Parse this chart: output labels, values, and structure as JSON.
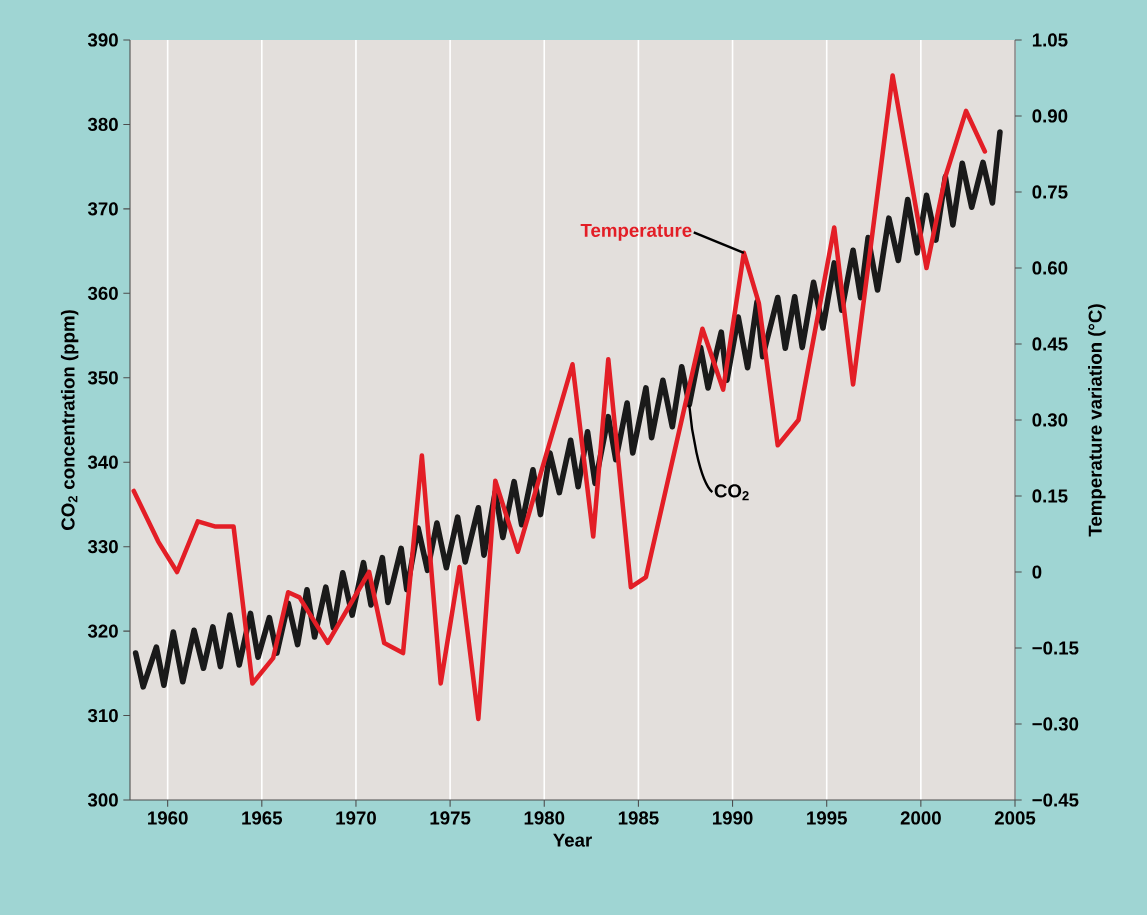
{
  "chart_data": {
    "type": "line",
    "xlabel": "Year",
    "ylabel": "CO$_{2}$ concentration (ppm)",
    "y2label": "Temperature variation (°C)",
    "xlim": [
      1958,
      2005
    ],
    "xticks": [
      1960,
      1965,
      1970,
      1975,
      1980,
      1985,
      1990,
      1995,
      2000,
      2005
    ],
    "ylim": [
      300,
      390
    ],
    "yticks": [
      300,
      310,
      320,
      330,
      340,
      350,
      360,
      370,
      380,
      390
    ],
    "y2lim": [
      -0.45,
      1.05
    ],
    "y2ticks": [
      {
        "value": -0.45,
        "label": "−0.45"
      },
      {
        "value": -0.3,
        "label": "−0.30"
      },
      {
        "value": -0.15,
        "label": "−0.15"
      },
      0,
      0.15,
      {
        "value": 0.3,
        "label": "0.30"
      },
      0.45,
      {
        "value": 0.6,
        "label": "0.60"
      },
      0.75,
      {
        "value": 0.9,
        "label": "0.90"
      },
      1.05
    ],
    "grid": "x",
    "series": [
      {
        "name": "Temperature",
        "color": "#e31e26",
        "axis": "y2",
        "x": [
          1958.2,
          1959.5,
          1960.5,
          1961.6,
          1962.5,
          1963.5,
          1964.5,
          1965.6,
          1966.4,
          1967.0,
          1968.5,
          1970.7,
          1971.5,
          1972.5,
          1973.5,
          1974.5,
          1975.5,
          1976.5,
          1977.4,
          1978.6,
          1981.5,
          1982.6,
          1983.4,
          1984.6,
          1985.4,
          1988.4,
          1989.5,
          1990.6,
          1991.4,
          1992.4,
          1993.5,
          1995.4,
          1996.4,
          1998.5,
          2000.3,
          2001.3,
          2002.4,
          2003.4
        ],
        "values": [
          0.16,
          0.06,
          0.0,
          0.1,
          0.09,
          0.09,
          -0.22,
          -0.17,
          -0.04,
          -0.05,
          -0.14,
          0.0,
          -0.14,
          -0.16,
          0.23,
          -0.22,
          0.01,
          -0.29,
          0.18,
          0.04,
          0.41,
          0.07,
          0.42,
          -0.03,
          -0.01,
          0.48,
          0.36,
          0.63,
          0.53,
          0.25,
          0.3,
          0.68,
          0.37,
          0.98,
          0.6,
          0.78,
          0.91,
          0.83
        ]
      },
      {
        "name": "CO$_{2}$",
        "color": "#1a1a1a",
        "x": [
          1958.3,
          1958.7,
          1959.4,
          1959.8,
          1960.3,
          1960.8,
          1961.4,
          1961.9,
          1962.4,
          1962.8,
          1963.3,
          1963.8,
          1964.4,
          1964.8,
          1965.4,
          1965.8,
          1966.4,
          1966.9,
          1967.4,
          1967.8,
          1968.4,
          1968.8,
          1969.3,
          1969.8,
          1970.4,
          1970.8,
          1971.4,
          1971.7,
          1972.4,
          1972.7,
          1973.3,
          1973.8,
          1974.3,
          1974.8,
          1975.4,
          1975.8,
          1976.5,
          1976.8,
          1977.4,
          1977.8,
          1978.4,
          1978.8,
          1979.4,
          1979.8,
          1980.3,
          1980.8,
          1981.4,
          1981.8,
          1982.3,
          1982.7,
          1983.4,
          1983.8,
          1984.4,
          1984.7,
          1985.4,
          1985.7,
          1986.3,
          1986.8,
          1987.3,
          1987.7,
          1988.3,
          1988.7,
          1989.4,
          1989.7,
          1990.3,
          1990.8,
          1991.3,
          1991.6,
          1992.4,
          1992.8,
          1993.3,
          1993.7,
          1994.3,
          1994.8,
          1995.4,
          1995.8,
          1996.4,
          1996.8,
          1997.2,
          1997.7,
          1998.3,
          1998.8,
          1999.3,
          1999.8,
          2000.3,
          2000.8,
          2001.3,
          2001.7,
          2002.2,
          2002.7,
          2003.3,
          2003.8,
          2004.2
        ],
        "values": [
          317.4,
          313.4,
          318.1,
          313.6,
          319.9,
          314.0,
          320.1,
          315.6,
          320.5,
          315.8,
          321.9,
          316.0,
          322.1,
          316.9,
          321.6,
          317.4,
          323.3,
          318.4,
          324.9,
          319.3,
          325.2,
          320.4,
          326.9,
          321.9,
          328.1,
          323.1,
          328.7,
          323.4,
          329.8,
          324.9,
          332.2,
          327.2,
          332.8,
          327.5,
          333.5,
          328.2,
          334.6,
          329.0,
          336.5,
          331.1,
          337.7,
          332.6,
          339.1,
          333.8,
          341.1,
          336.4,
          342.6,
          337.1,
          343.6,
          337.5,
          345.4,
          340.3,
          347.0,
          341.1,
          348.8,
          342.9,
          349.7,
          344.2,
          351.3,
          346.8,
          353.6,
          348.8,
          355.4,
          349.7,
          357.2,
          351.2,
          359.0,
          352.5,
          359.5,
          353.5,
          359.6,
          353.6,
          361.3,
          355.9,
          363.6,
          358.0,
          365.1,
          359.5,
          366.6,
          360.4,
          368.9,
          363.9,
          371.1,
          364.8,
          371.6,
          366.3,
          373.8,
          368.1,
          375.4,
          370.2,
          375.5,
          370.7,
          379.1
        ]
      }
    ]
  }
}
